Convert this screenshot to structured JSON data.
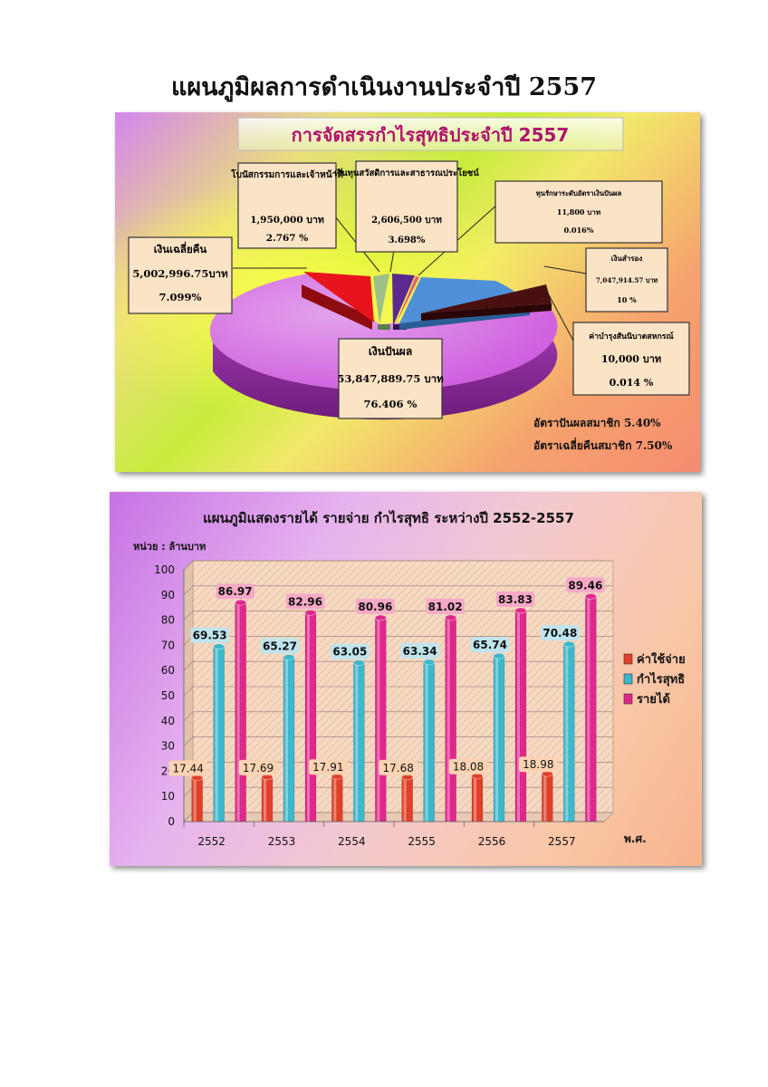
{
  "page": {
    "title": "แผนภูมิผลการดำเนินงานประจำปี 2557"
  },
  "pie_chart_panel": {
    "title": "การจัดสรรกำไรสุทธิประจำปี 2557",
    "note_dividend_rate": "อัตราปันผลสมาชิก 5.40%",
    "note_refund_rate": "อัตราเฉลี่ยคืนสมาชิก 7.50%"
  },
  "bar_chart_panel": {
    "title": "แผนภูมิแสดงรายได้ รายจ่าย กำไรสุทธิ ระหว่างปี 2552-2557",
    "unit_label": "หน่วย : ล้านบาท",
    "xlabel": "พ.ศ."
  },
  "chart_data": [
    {
      "type": "pie",
      "title": "การจัดสรรกำไรสุทธิประจำปี 2557",
      "slices": [
        {
          "label": "เงินปันผล",
          "amount": "53,847,889.75 บาท",
          "percent_text": "76.406 %",
          "value": 76.406,
          "color": "#cc55dd"
        },
        {
          "label": "เงินเฉลี่ยคืน",
          "amount": "5,002,996.75บาท",
          "percent_text": "7.099%",
          "value": 7.099,
          "color": "#e8141b"
        },
        {
          "label": "โบนัสกรรมการและเจ้าหน้าที่",
          "amount": "1,950,000 บาท",
          "percent_text": "2.767 %",
          "value": 2.767,
          "color": "#9fbf8a"
        },
        {
          "label": "เงินทุนสวัสดิการและสาธารณประโยชน์",
          "amount": "2,606,500 บาท",
          "percent_text": "3.698%",
          "value": 3.698,
          "color": "#5a2a8e"
        },
        {
          "label": "ทุนรักษาระดับอัตราเงินปันผล",
          "amount": "11,800 บาท",
          "percent_text": "0.016%",
          "value": 0.016,
          "color": "#e0607a"
        },
        {
          "label": "เงินสำรอง",
          "amount": "7,047,914.57 บาท",
          "percent_text": "10 %",
          "value": 10.0,
          "color": "#4f90d8"
        },
        {
          "label": "ค่าบำรุงสันนิบาตสหกรณ์",
          "amount": "10,000 บาท",
          "percent_text": "0.014 %",
          "value": 0.014,
          "color": "#4a1010"
        }
      ]
    },
    {
      "type": "bar",
      "title": "แผนภูมิแสดงรายได้ รายจ่าย กำไรสุทธิ ระหว่างปี 2552-2557",
      "categories": [
        "2552",
        "2553",
        "2554",
        "2555",
        "2556",
        "2557"
      ],
      "series": [
        {
          "name": "ค่าใช้จ่าย",
          "values": [
            17.44,
            17.69,
            17.91,
            17.68,
            18.08,
            18.98
          ],
          "color": "#e0402a",
          "label_bg": "#fbd3b2"
        },
        {
          "name": "กำไรสุทธิ",
          "values": [
            69.53,
            65.27,
            63.05,
            63.34,
            65.74,
            70.48
          ],
          "color": "#3cb7cc",
          "label_bg": "#bfe4ee"
        },
        {
          "name": "รายได้",
          "values": [
            86.97,
            82.96,
            80.96,
            81.02,
            83.83,
            89.46
          ],
          "color": "#e0288c",
          "label_bg": "#f7a9c7"
        }
      ],
      "ylim": [
        0,
        100
      ],
      "yticks": [
        0,
        10,
        20,
        30,
        40,
        50,
        60,
        70,
        80,
        90,
        100
      ],
      "ylabel": "หน่วย : ล้านบาท",
      "xlabel": "พ.ศ.",
      "legend": "right",
      "grid": true
    }
  ]
}
